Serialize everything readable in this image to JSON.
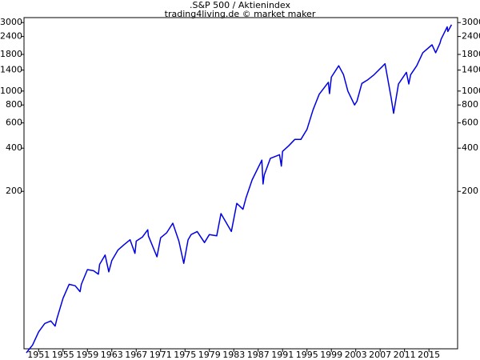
{
  "chart_data": {
    "type": "line",
    "title": ".S&P 500 / Aktienindex",
    "subtitle": "trading4living.de © market maker",
    "log_scale_y": true,
    "x": [
      1949.0,
      1949.5,
      1950.0,
      1951.0,
      1952.0,
      1953.0,
      1953.7,
      1954.0,
      1955.0,
      1956.0,
      1957.0,
      1957.8,
      1958.0,
      1959.0,
      1960.0,
      1960.8,
      1961.0,
      1961.9,
      1962.5,
      1963.0,
      1964.0,
      1965.0,
      1966.0,
      1966.8,
      1967.0,
      1968.0,
      1968.9,
      1969.0,
      1970.4,
      1971.0,
      1972.0,
      1973.0,
      1974.0,
      1974.8,
      1975.5,
      1976.0,
      1977.0,
      1978.2,
      1979.0,
      1980.2,
      1980.9,
      1982.6,
      1983.5,
      1984.5,
      1985.0,
      1986.0,
      1987.6,
      1987.8,
      1988.0,
      1989.0,
      1990.5,
      1990.8,
      1991.0,
      1992.0,
      1993.0,
      1994.0,
      1995.0,
      1996.0,
      1997.0,
      1998.5,
      1998.7,
      1999.0,
      2000.2,
      2001.0,
      2001.7,
      2002.8,
      2003.2,
      2004.0,
      2005.0,
      2006.0,
      2007.8,
      2008.8,
      2009.2,
      2010.0,
      2011.3,
      2011.7,
      2012.0,
      2013.0,
      2014.0,
      2015.5,
      2016.1,
      2016.8,
      2017.0,
      2018.0,
      2018.1,
      2018.7
    ],
    "series": [
      {
        "name": "S&P 500",
        "color": "#0000e6",
        "values": [
          15,
          16,
          17,
          21,
          24,
          25,
          23,
          26,
          36,
          45,
          44,
          40,
          45,
          57,
          56,
          53,
          62,
          72,
          55,
          66,
          78,
          85,
          92,
          74,
          90,
          96,
          108,
          98,
          70,
          95,
          103,
          120,
          90,
          63,
          92,
          100,
          105,
          88,
          100,
          98,
          140,
          105,
          165,
          150,
          180,
          240,
          330,
          225,
          260,
          340,
          360,
          300,
          380,
          415,
          460,
          460,
          540,
          740,
          950,
          1150,
          960,
          1250,
          1500,
          1300,
          1000,
          800,
          850,
          1130,
          1200,
          1300,
          1550,
          900,
          700,
          1120,
          1350,
          1120,
          1300,
          1500,
          1850,
          2100,
          1850,
          2150,
          2300,
          2800,
          2600,
          2900
        ]
      }
    ],
    "xlim": [
      1948.6,
      2019.7
    ],
    "xticks": [
      1951,
      1955,
      1959,
      1963,
      1967,
      1971,
      1975,
      1979,
      1983,
      1987,
      1991,
      1995,
      1999,
      2003,
      2007,
      2011,
      2015
    ],
    "ylim": [
      16,
      3250
    ],
    "yticks": [
      200,
      400,
      600,
      800,
      1000,
      1400,
      1800,
      2400,
      3000
    ]
  }
}
